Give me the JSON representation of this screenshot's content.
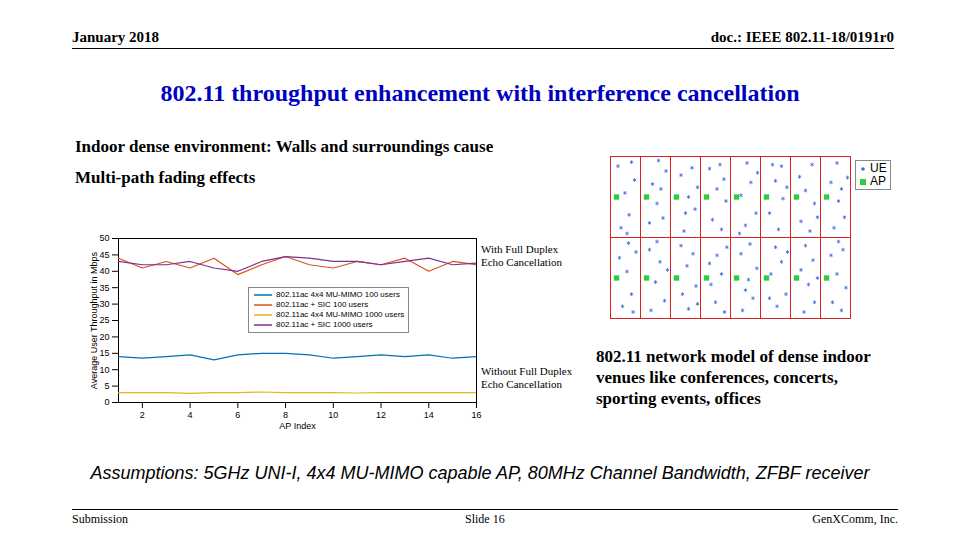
{
  "header": {
    "left": "January 2018",
    "right": "doc.: IEEE 802.11-18/0191r0"
  },
  "title": "802.11 throughput enhancement with interference cancellation",
  "text": [
    "Indoor dense environment: Walls and surroundings cause",
    "Multi-path fading effects"
  ],
  "chart_data": [
    {
      "type": "line",
      "x_label": "AP Index",
      "y_label": "Average User Throughput in Mbps",
      "x": [
        1,
        2,
        3,
        4,
        5,
        6,
        7,
        8,
        9,
        10,
        11,
        12,
        13,
        14,
        15,
        16
      ],
      "xlim": [
        1,
        16
      ],
      "xticks": [
        2,
        4,
        6,
        8,
        10,
        12,
        14,
        16
      ],
      "ylim": [
        0,
        50
      ],
      "yticks": [
        0,
        5,
        10,
        15,
        20,
        25,
        30,
        35,
        40,
        45,
        50
      ],
      "grid": false,
      "legend": "top",
      "series": [
        {
          "name": "802.11ac 4x4 MU-MIMO 100 users",
          "color": "#0072bd",
          "values": [
            14,
            13.5,
            14,
            14.5,
            13,
            14.5,
            15,
            15,
            14.5,
            13.5,
            14,
            14.5,
            14,
            14.5,
            13.5,
            14
          ]
        },
        {
          "name": "802.11ac + SIC 100 users",
          "color": "#d95319",
          "values": [
            44,
            41,
            43,
            41,
            44,
            39,
            42,
            44.5,
            42,
            41,
            43,
            42,
            44,
            40,
            43,
            42
          ]
        },
        {
          "name": "802.11ac 4x4 MU-MIMO 1000 users",
          "color": "#edb120",
          "values": [
            3,
            3,
            3,
            2.8,
            3,
            3,
            3.2,
            3,
            3,
            3,
            2.9,
            3,
            3,
            3,
            3,
            3
          ]
        },
        {
          "name": "802.11ac + SIC 1000 users",
          "color": "#7e2f8e",
          "values": [
            43,
            42,
            42,
            43,
            41,
            40,
            43,
            44.5,
            44,
            43,
            43,
            42,
            43,
            44,
            42,
            42.5
          ]
        }
      ],
      "annotations": [
        "With Full Duplex Echo Cancellation",
        "Without Full Duplex Echo Cancellation"
      ]
    },
    {
      "type": "scatter",
      "title": "802.11 network model of dense indoor venues like conferences, concerts, sporting events, offices",
      "xlim": [
        0,
        8
      ],
      "ylim": [
        0,
        2
      ],
      "xticks": [
        0,
        1,
        2,
        3,
        4,
        5,
        6,
        7,
        8
      ],
      "yticks": [
        0,
        1,
        2
      ],
      "grid": true,
      "tick_labels": false,
      "legend": "top-right",
      "series": [
        {
          "name": "UE",
          "color": "#3a6fd8",
          "marker": "asterisk",
          "x": [
            0.35,
            0.62,
            0.48,
            0.8,
            0.25,
            0.7,
            0.55,
            1.3,
            1.75,
            1.55,
            1.4,
            1.85,
            1.6,
            1.68,
            2.45,
            2.82,
            2.6,
            2.35,
            2.72,
            2.9,
            2.5,
            3.4,
            3.7,
            3.55,
            3.85,
            3.3,
            3.65,
            3.78,
            4.5,
            4.85,
            4.35,
            4.68,
            4.55,
            4.9,
            4.3,
            5.6,
            5.3,
            5.75,
            5.5,
            5.88,
            5.4,
            5.7,
            6.35,
            6.65,
            6.8,
            6.5,
            6.3,
            6.72,
            6.9,
            7.45,
            7.8,
            7.6,
            7.35,
            7.9,
            7.55,
            7.7,
            0.4,
            0.7,
            0.55,
            0.3,
            0.85,
            0.6,
            0.75,
            1.35,
            1.8,
            1.5,
            1.65,
            1.3,
            1.9,
            1.55,
            2.6,
            2.4,
            2.85,
            2.55,
            2.75,
            2.35,
            2.9,
            3.5,
            3.8,
            3.35,
            3.7,
            3.55,
            3.88,
            3.3,
            4.4,
            4.75,
            4.6,
            4.88,
            4.35,
            4.65,
            4.5,
            5.55,
            5.85,
            5.35,
            5.7,
            5.5,
            5.9,
            5.3,
            6.45,
            6.8,
            6.6,
            6.35,
            6.75,
            6.5,
            6.9,
            7.4,
            7.7,
            7.85,
            7.55,
            7.35,
            7.75,
            7.6
          ],
          "y": [
            1.12,
            1.28,
            1.55,
            1.71,
            1.88,
            1.93,
            1.05,
            1.18,
            1.24,
            1.42,
            1.66,
            1.82,
            1.95,
            1.6,
            1.08,
            1.35,
            1.5,
            1.77,
            1.86,
            1.62,
            1.3,
            1.22,
            1.1,
            1.6,
            1.45,
            1.85,
            1.9,
            1.72,
            1.15,
            1.3,
            1.52,
            1.68,
            1.92,
            1.8,
            1.05,
            1.1,
            1.3,
            1.48,
            1.7,
            1.62,
            1.9,
            1.88,
            1.2,
            1.08,
            1.42,
            1.58,
            1.75,
            1.9,
            1.25,
            1.12,
            1.25,
            1.45,
            1.68,
            1.74,
            1.92,
            1.6,
            0.15,
            0.3,
            0.58,
            0.75,
            0.82,
            0.93,
            0.08,
            0.1,
            0.22,
            0.45,
            0.7,
            0.85,
            0.6,
            0.95,
            0.12,
            0.3,
            0.4,
            0.65,
            0.8,
            0.9,
            0.18,
            0.2,
            0.08,
            0.42,
            0.55,
            0.78,
            0.88,
            0.68,
            0.1,
            0.25,
            0.48,
            0.62,
            0.8,
            0.92,
            0.35,
            0.15,
            0.3,
            0.55,
            0.7,
            0.88,
            0.82,
            0.25,
            0.08,
            0.2,
            0.42,
            0.6,
            0.72,
            0.9,
            0.5,
            0.2,
            0.1,
            0.38,
            0.55,
            0.78,
            0.85,
            0.95
          ]
        },
        {
          "name": "AP",
          "color": "#2ecc40",
          "marker": "square",
          "x": [
            0.2,
            1.2,
            2.2,
            3.2,
            4.2,
            5.2,
            6.2,
            7.2,
            0.2,
            1.2,
            2.2,
            3.2,
            4.2,
            5.2,
            6.2,
            7.2
          ],
          "y": [
            1.5,
            1.5,
            1.5,
            1.5,
            1.5,
            1.5,
            1.5,
            1.5,
            0.5,
            0.5,
            0.5,
            0.5,
            0.5,
            0.5,
            0.5,
            0.5
          ]
        }
      ]
    }
  ],
  "assumptions": "Assumptions: 5GHz UNI-I, 4x4 MU-MIMO capable AP, 80MHz Channel Bandwidth, ZFBF receiver",
  "footer": {
    "left": "Submission",
    "center": "Slide 16",
    "right": "GenXComm, Inc."
  }
}
